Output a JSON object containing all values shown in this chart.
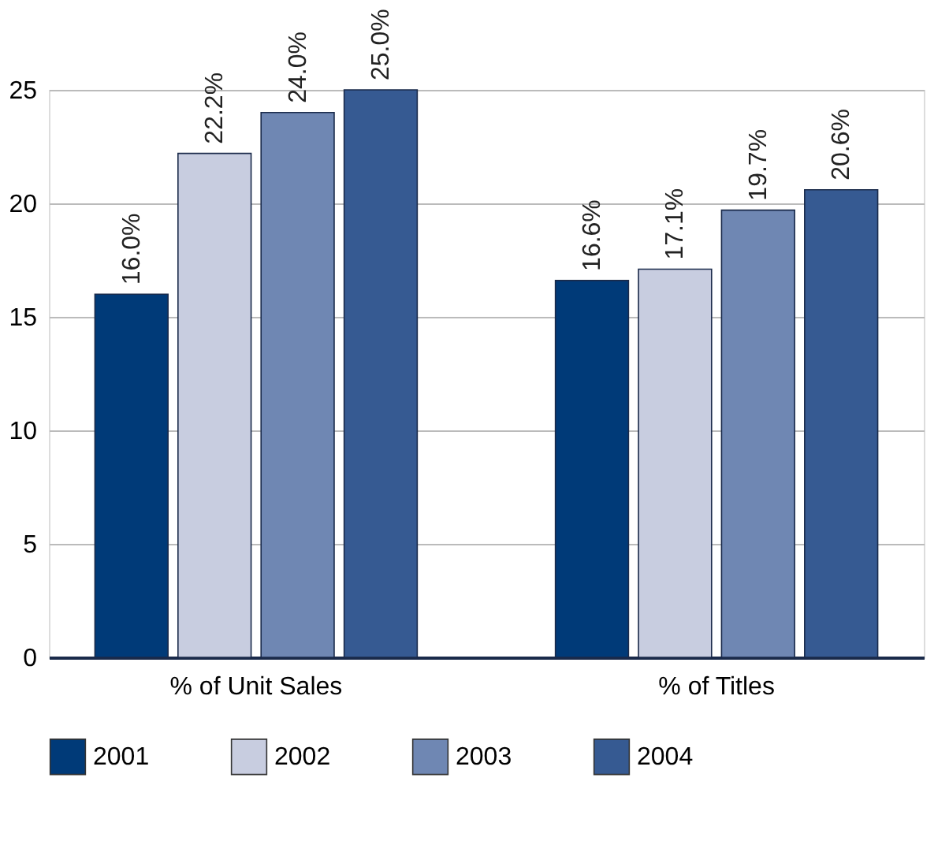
{
  "chart_data": {
    "type": "bar",
    "categories": [
      "% of Unit Sales",
      "% of Titles"
    ],
    "series": [
      {
        "name": "2001",
        "color": "#003a78",
        "values": [
          16.0,
          16.6
        ],
        "value_labels": [
          "16.0%",
          "16.6%"
        ]
      },
      {
        "name": "2002",
        "color": "#c8cde0",
        "values": [
          22.2,
          17.1
        ],
        "value_labels": [
          "22.2%",
          "17.1%"
        ]
      },
      {
        "name": "2003",
        "color": "#6f87b3",
        "values": [
          24.0,
          19.7
        ],
        "value_labels": [
          "24.0%",
          "19.7%"
        ]
      },
      {
        "name": "2004",
        "color": "#365a92",
        "values": [
          25.0,
          20.6
        ],
        "value_labels": [
          "25.0%",
          "20.6%"
        ]
      }
    ],
    "ylim": [
      0,
      25
    ],
    "yticks": [
      0,
      5,
      10,
      15,
      20,
      25
    ],
    "grid": "y",
    "legend": "bottom"
  }
}
